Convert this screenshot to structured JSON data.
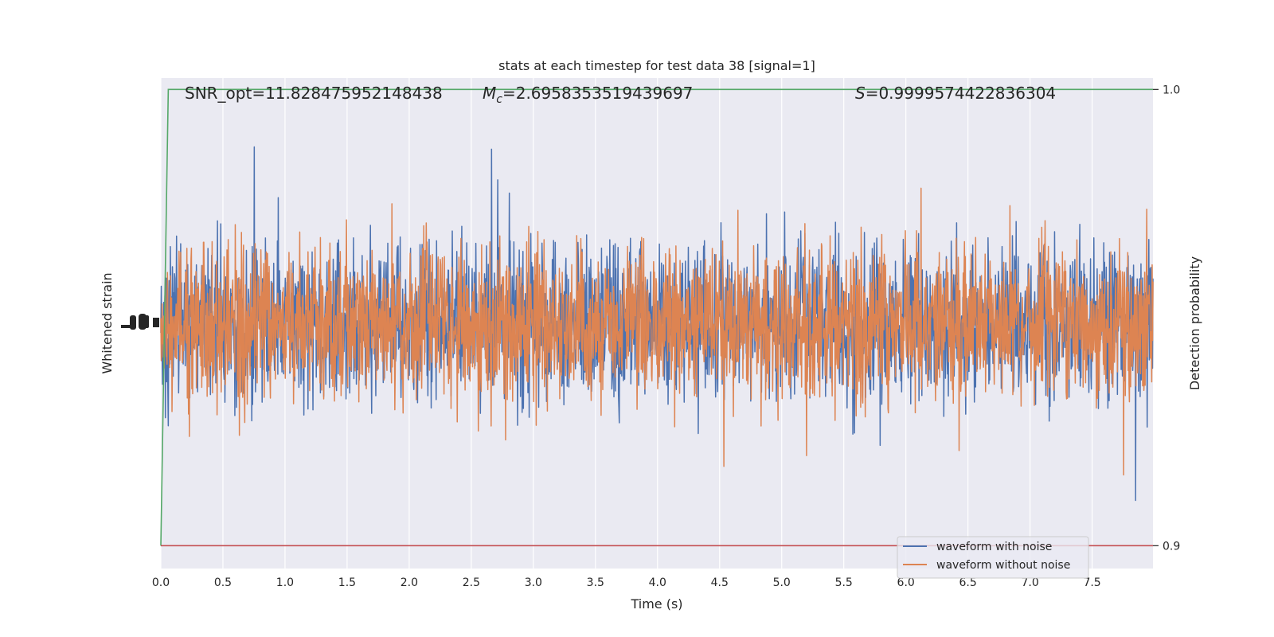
{
  "chart_data": {
    "type": "line",
    "title": "stats at each timestep for test data 38 [signal=1]",
    "xlabel": "Time (s)",
    "ylabel_left": "Whitened strain",
    "ylabel_right": "Detection probability",
    "xlim": [
      0,
      7.99
    ],
    "x_ticks": [
      "0.0",
      "0.5",
      "1.0",
      "1.5",
      "2.0",
      "2.5",
      "3.0",
      "3.5",
      "4.0",
      "4.5",
      "5.0",
      "5.5",
      "6.0",
      "6.5",
      "7.0",
      "7.5"
    ],
    "right_ylim": [
      0.895,
      1.0025
    ],
    "right_ticks": [
      "0.9",
      "1.0"
    ],
    "annotations": {
      "snr": "SNR_opt=11.828475952148438",
      "mc_symbol": "M",
      "mc_sub": "c",
      "mc_value": "=2.6958353519439697",
      "s_symbol": "S",
      "s_value": "=0.9999574422836304"
    },
    "legend": {
      "placement": "lower-right",
      "entries": [
        "waveform with noise",
        "waveform without noise"
      ]
    },
    "series": [
      {
        "name": "waveform with noise",
        "color": "#4c72b0",
        "kind": "noise"
      },
      {
        "name": "waveform without noise",
        "color": "#dd8452",
        "kind": "noise"
      },
      {
        "color": "#55a868",
        "x": [
          0,
          0.06,
          7.99
        ],
        "y": [
          0.9,
          1.0,
          1.0
        ]
      },
      {
        "color": "#c44e52",
        "x": [
          0,
          7.99
        ],
        "y": [
          0.9,
          0.9
        ]
      }
    ],
    "grid": true,
    "colors": {
      "axes_bg": "#eaeaf2",
      "grid": "#ffffff",
      "text": "#262626"
    }
  }
}
